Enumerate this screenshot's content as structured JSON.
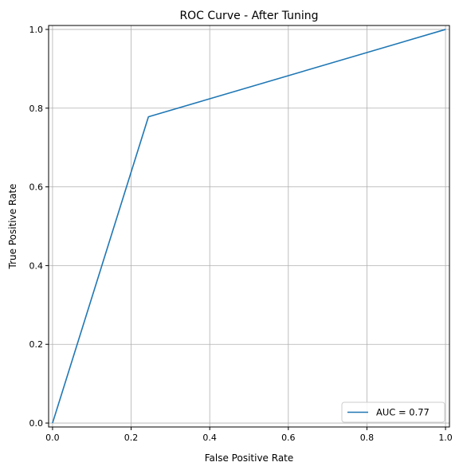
{
  "chart_data": {
    "type": "line",
    "title": "ROC Curve - After Tuning",
    "xlabel": "False Positive Rate",
    "ylabel": "True Positive Rate",
    "xlim": [
      -0.01,
      1.01
    ],
    "ylim": [
      -0.01,
      1.01
    ],
    "xticks": [
      0.0,
      0.2,
      0.4,
      0.6,
      0.8,
      1.0
    ],
    "yticks": [
      0.0,
      0.2,
      0.4,
      0.6,
      0.8,
      1.0
    ],
    "xtick_labels": [
      "0.0",
      "0.2",
      "0.4",
      "0.6",
      "0.8",
      "1.0"
    ],
    "ytick_labels": [
      "0.0",
      "0.2",
      "0.4",
      "0.6",
      "0.8",
      "1.0"
    ],
    "grid": true,
    "legend_position": "lower-right",
    "series": [
      {
        "name": "AUC = 0.77",
        "color": "#1f77b4",
        "x": [
          0.0,
          0.244,
          1.0
        ],
        "y": [
          0.0,
          0.778,
          1.0
        ]
      }
    ]
  }
}
